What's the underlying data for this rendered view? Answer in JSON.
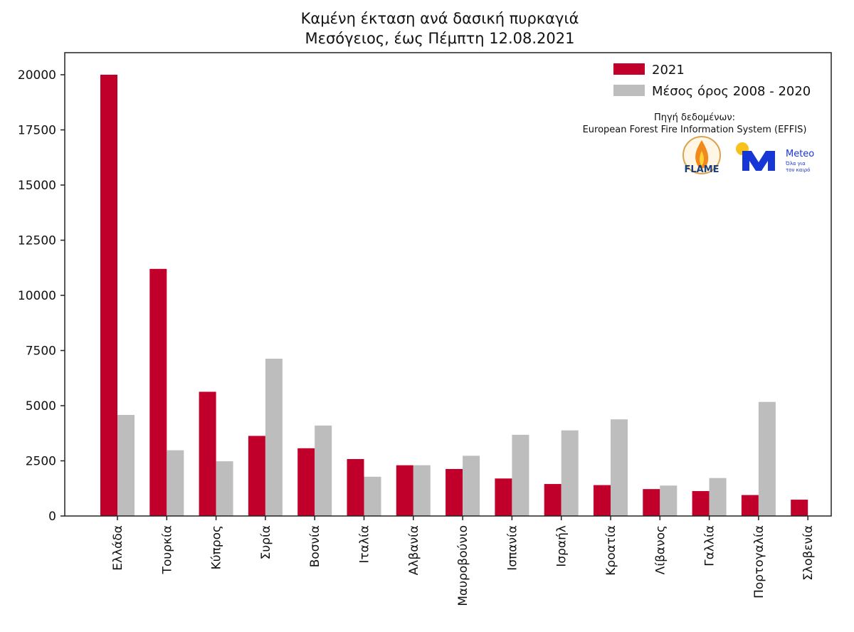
{
  "chart_data": {
    "type": "bar",
    "title": "Καμένη έκταση ανά δασική πυρκαγιά",
    "subtitle": "Μεσόγειος, έως Πέμπτη 12.08.2021",
    "categories": [
      "Ελλάδα",
      "Τουρκία",
      "Κύπρος",
      "Συρία",
      "Βοσνία",
      "Ιταλία",
      "Αλβανία",
      "Μαυροβούνιο",
      "Ισπανία",
      "Ισραήλ",
      "Κροατία",
      "Λίβανος",
      "Γαλλία",
      "Πορτογαλία",
      "Σλοβενία"
    ],
    "series": [
      {
        "name": "2021",
        "color": "#c0002a",
        "values": [
          20000,
          11200,
          5630,
          3630,
          3070,
          2580,
          2300,
          2130,
          1700,
          1450,
          1400,
          1220,
          1130,
          950,
          740
        ]
      },
      {
        "name": "Μέσος όρος 2008 - 2020",
        "color": "#bdbdbd",
        "values": [
          4580,
          2980,
          2480,
          7130,
          4100,
          1780,
          2300,
          2730,
          3680,
          3880,
          4380,
          1380,
          1720,
          5170,
          0
        ]
      }
    ],
    "ylim": [
      0,
      21000
    ],
    "yticks": [
      0,
      2500,
      5000,
      7500,
      10000,
      12500,
      15000,
      17500,
      20000
    ],
    "xlabel": "",
    "ylabel": "",
    "legend_position": "top-right",
    "grid": false
  },
  "source": {
    "label": "Πηγή δεδομένων:",
    "text": "European Forest Fire Information System (EFFIS)"
  },
  "logos": {
    "flame": {
      "text": "FLAME",
      "icon": "flame-logo-icon"
    },
    "meteo": {
      "text": "Meteo",
      "tagline_1": "Όλα για",
      "tagline_2": "τον καιρό",
      "icon": "meteo-logo-icon"
    }
  }
}
